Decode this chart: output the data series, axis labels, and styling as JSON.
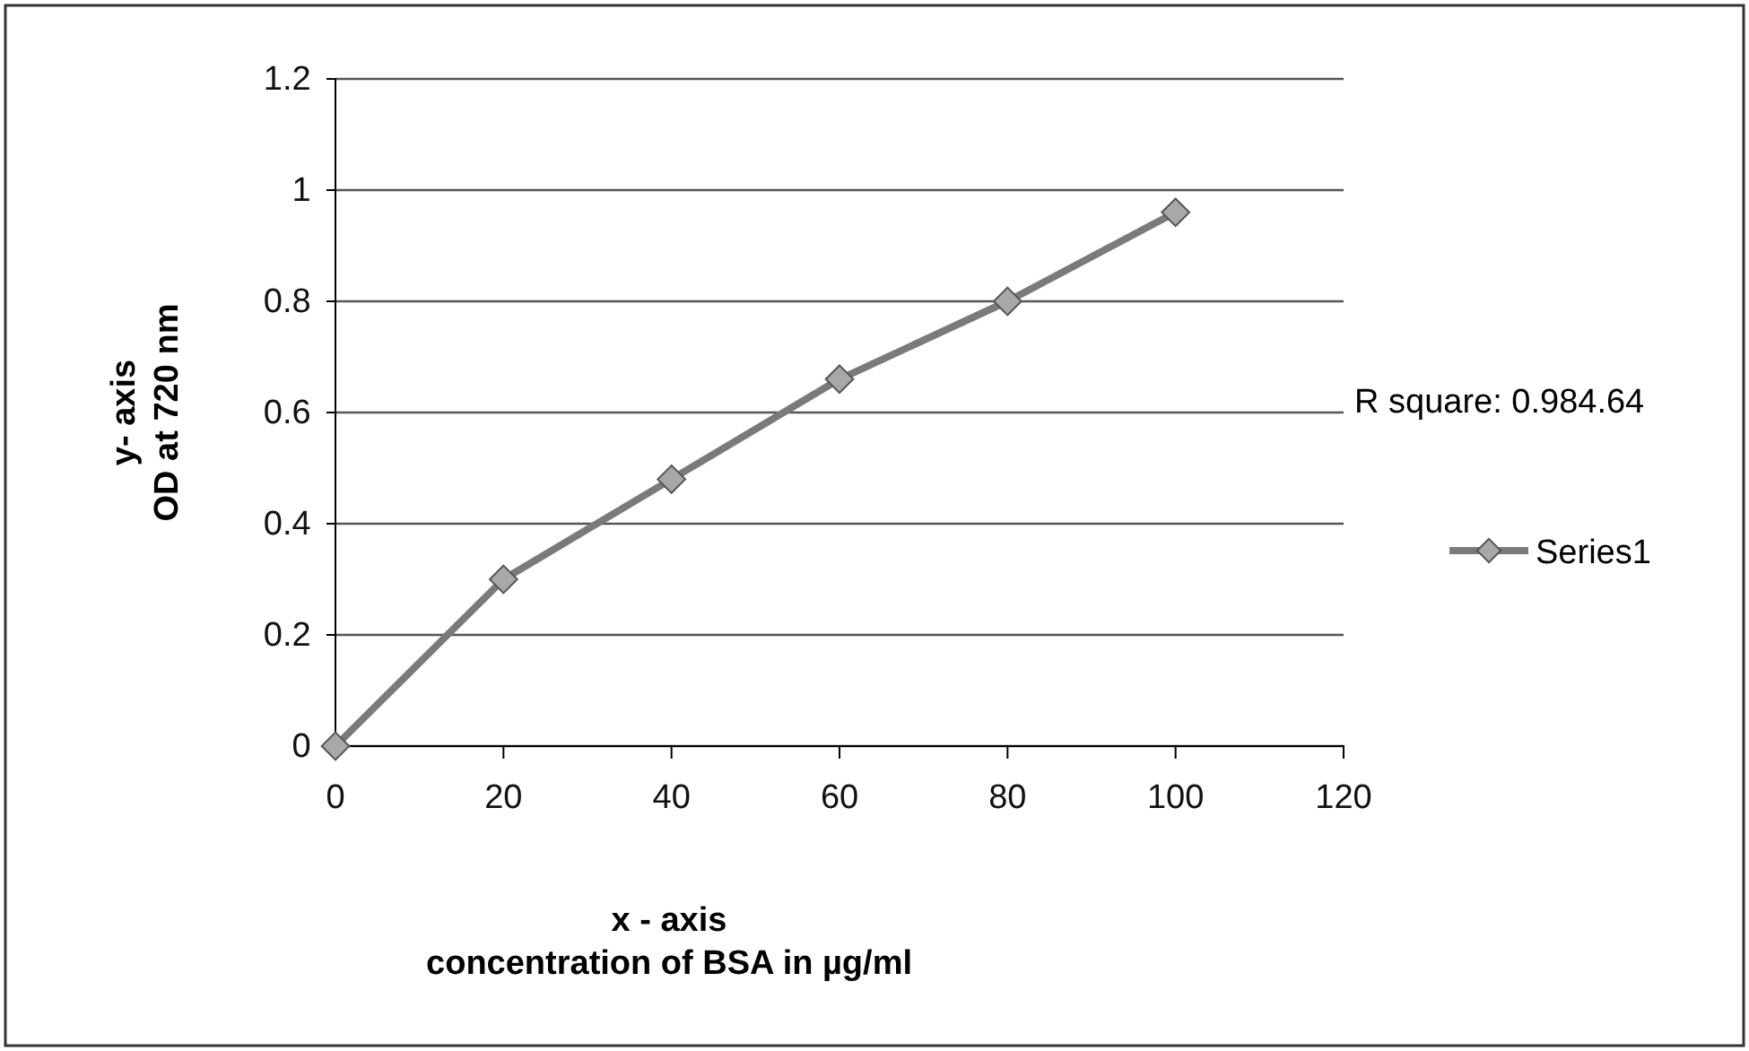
{
  "chart_data": {
    "type": "line",
    "x": [
      0,
      20,
      40,
      60,
      80,
      100
    ],
    "series": [
      {
        "name": "Series1",
        "color": "#7a7a7a",
        "values": [
          0,
          0.3,
          0.48,
          0.66,
          0.8,
          0.96
        ]
      }
    ],
    "xlim": [
      0,
      120
    ],
    "xticks": [
      0,
      20,
      40,
      60,
      80,
      100,
      120
    ],
    "ylim": [
      0,
      1.2
    ],
    "yticks": [
      0,
      0.2,
      0.4,
      0.6,
      0.8,
      1,
      1.2
    ],
    "xlabel": "x - axis\nconcentration of BSA in µg/ml",
    "ylabel": "y- axis\nOD at 720 nm",
    "annotations": [
      "R square: 0.984.64"
    ],
    "grid": "y",
    "legend": "right",
    "marker": "diamond",
    "line_style": "solid"
  }
}
